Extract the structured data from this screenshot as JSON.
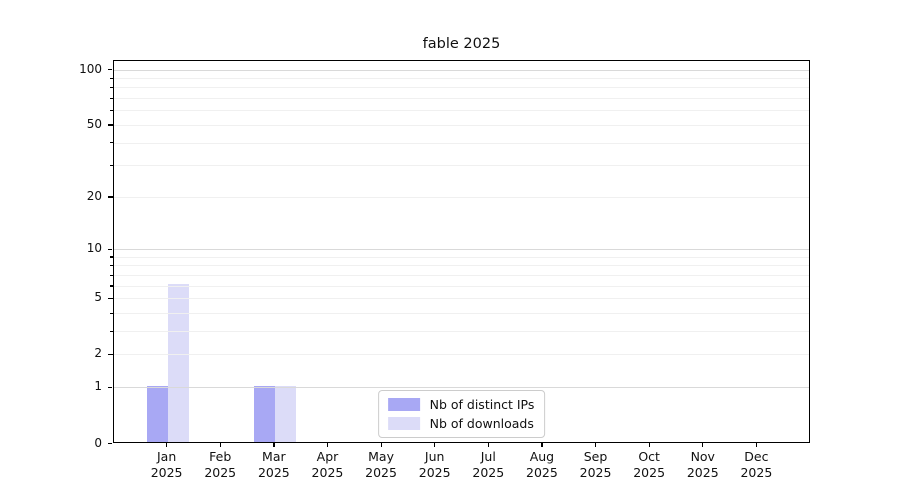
{
  "chart_data": {
    "type": "bar",
    "title": "fable 2025",
    "categories": [
      {
        "month": "Jan",
        "year": "2025"
      },
      {
        "month": "Feb",
        "year": "2025"
      },
      {
        "month": "Mar",
        "year": "2025"
      },
      {
        "month": "Apr",
        "year": "2025"
      },
      {
        "month": "May",
        "year": "2025"
      },
      {
        "month": "Jun",
        "year": "2025"
      },
      {
        "month": "Jul",
        "year": "2025"
      },
      {
        "month": "Aug",
        "year": "2025"
      },
      {
        "month": "Sep",
        "year": "2025"
      },
      {
        "month": "Oct",
        "year": "2025"
      },
      {
        "month": "Nov",
        "year": "2025"
      },
      {
        "month": "Dec",
        "year": "2025"
      }
    ],
    "series": [
      {
        "name": "Nb of distinct IPs",
        "color": "#a8a8f4",
        "values": [
          1,
          0,
          1,
          0,
          0,
          0,
          0,
          0,
          0,
          0,
          0,
          0
        ]
      },
      {
        "name": "Nb of downloads",
        "color": "#dcdcf8",
        "values": [
          6,
          0,
          1,
          0,
          0,
          0,
          0,
          0,
          0,
          0,
          0,
          0
        ]
      }
    ],
    "xlabel": "",
    "ylabel": "",
    "y_axis": {
      "scale": "log1p",
      "tick_values": [
        100,
        50,
        20,
        10,
        5,
        2,
        1,
        0
      ],
      "tick_labels": [
        "100",
        "50",
        "20",
        "10",
        "5",
        "2",
        "1",
        "0"
      ],
      "minor_tick_values": [
        2,
        3,
        4,
        5,
        6,
        7,
        8,
        9,
        20,
        30,
        40,
        50,
        60,
        70,
        80,
        90
      ],
      "major_gridline_values": [
        1,
        10,
        100
      ],
      "minor_gridline_values": [
        2,
        3,
        4,
        5,
        6,
        7,
        8,
        9,
        20,
        30,
        40,
        50,
        60,
        70,
        80,
        90
      ],
      "ylim": [
        0,
        112
      ]
    },
    "grid": "horizontal, drawn over bars",
    "legend": {
      "position": "lower center",
      "items": [
        "Nb of distinct IPs",
        "Nb of downloads"
      ]
    }
  },
  "style": {
    "background": "#ffffff",
    "spine_color": "#000000",
    "grid_major_color": "#d9d9d9",
    "grid_minor_color": "#f0f0f0",
    "text_color": "#111111",
    "legend_border_color": "#cccccc"
  }
}
